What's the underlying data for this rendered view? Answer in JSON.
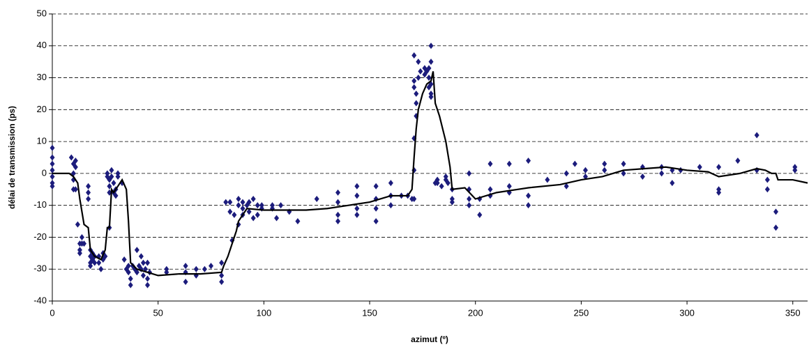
{
  "chart_data": {
    "type": "scatter",
    "xlabel": "azimut (º)",
    "ylabel": "délai de transmission (ps)",
    "xlim": [
      0,
      357
    ],
    "ylim": [
      -40,
      50
    ],
    "xticks": [
      0,
      50,
      100,
      150,
      200,
      250,
      300,
      350
    ],
    "yticks": [
      -40,
      -30,
      -20,
      -10,
      0,
      10,
      20,
      30,
      40,
      50
    ],
    "grid": true,
    "series": [
      {
        "type": "scatter",
        "color": "#1c1c7c",
        "x": [
          0,
          0,
          0,
          0,
          0,
          0,
          0,
          9,
          10,
          10,
          10,
          10,
          11,
          11,
          11,
          12,
          13,
          13,
          13,
          14,
          14,
          15,
          17,
          17,
          17,
          18,
          18,
          18,
          18,
          19,
          19,
          20,
          20,
          22,
          22,
          23,
          24,
          24,
          25,
          26,
          26,
          27,
          27,
          27,
          27,
          28,
          28,
          29,
          29,
          30,
          30,
          31,
          31,
          33,
          34,
          35,
          36,
          36,
          37,
          37,
          38,
          39,
          40,
          40,
          41,
          42,
          42,
          43,
          43,
          44,
          45,
          45,
          45,
          46,
          54,
          54,
          63,
          63,
          63,
          68,
          68,
          72,
          75,
          80,
          80,
          80,
          82,
          84,
          84,
          85,
          86,
          88,
          88,
          88,
          90,
          90,
          90,
          92,
          93,
          93,
          95,
          95,
          97,
          97,
          99,
          99,
          104,
          104,
          106,
          108,
          112,
          116,
          125,
          135,
          135,
          135,
          135,
          144,
          144,
          144,
          144,
          153,
          153,
          153,
          153,
          160,
          160,
          160,
          165,
          168,
          170,
          171,
          171,
          171,
          171,
          171,
          171,
          172,
          172,
          172,
          173,
          173,
          174,
          176,
          176,
          177,
          178,
          178,
          178,
          179,
          179,
          179,
          179,
          179,
          181,
          182,
          182,
          184,
          186,
          186,
          187,
          189,
          189,
          189,
          197,
          197,
          197,
          197,
          202,
          202,
          207,
          207,
          207,
          216,
          216,
          216,
          225,
          225,
          225,
          234,
          243,
          243,
          247,
          252,
          252,
          261,
          261,
          270,
          270,
          279,
          279,
          288,
          288,
          293,
          293,
          297,
          306,
          315,
          315,
          315,
          324,
          333,
          333,
          338,
          338,
          342,
          342,
          351,
          351
        ],
        "y": [
          8,
          5,
          3,
          1,
          -1,
          -3,
          -4,
          5,
          3,
          0,
          -2,
          -5,
          4,
          2,
          -5,
          -16,
          -22,
          -24,
          -25,
          -20,
          -22,
          -22,
          -4,
          -6,
          -8,
          -24,
          -26,
          -28,
          -29,
          -25,
          -27,
          -26,
          -28,
          -26,
          -28,
          -30,
          -25,
          -27,
          -26,
          0,
          -1,
          -2,
          -4,
          -6,
          -17,
          -1,
          1,
          -3,
          -6,
          -5,
          -7,
          0,
          -1,
          -3,
          -27,
          -30,
          -29,
          -31,
          -33,
          -35,
          -29,
          -30,
          -24,
          -31,
          -29,
          -26,
          -30,
          -28,
          -32,
          -30,
          -33,
          -35,
          -28,
          -31,
          -30,
          -31,
          -29,
          -31,
          -34,
          -30,
          -32,
          -30,
          -29,
          -28,
          -32,
          -34,
          -9,
          -9,
          -12,
          -21,
          -13,
          -8,
          -10,
          -16,
          -9,
          -11,
          -13,
          -10,
          -9,
          -12,
          -8,
          -14,
          -10,
          -13,
          -10,
          -11,
          -10,
          -11,
          -14,
          -10,
          -12,
          -15,
          -8,
          -6,
          -9,
          -13,
          -15,
          -4,
          -7,
          -11,
          -13,
          -4,
          -8,
          -11,
          -15,
          -3,
          -7,
          -10,
          -7,
          -7,
          -8,
          37,
          29,
          27,
          1,
          11,
          -8,
          25,
          22,
          18,
          35,
          30,
          32,
          31,
          33,
          32,
          33,
          27,
          30,
          40,
          35,
          25,
          28,
          24,
          -3,
          -2,
          -3,
          -4,
          -1,
          -2,
          -3,
          -5,
          -8,
          -9,
          0,
          -5,
          -8,
          -10,
          -8,
          -13,
          3,
          -5,
          -7,
          3,
          -4,
          -6,
          4,
          -7,
          -10,
          -2,
          0,
          -4,
          3,
          1,
          -1,
          3,
          1,
          3,
          0,
          2,
          -1,
          2,
          0,
          1,
          -3,
          1,
          2,
          2,
          -5,
          -6,
          4,
          12,
          1,
          -5,
          -2,
          -12,
          -17,
          2,
          1
        ]
      },
      {
        "type": "line",
        "color": "#000000",
        "x": [
          0,
          8,
          10,
          12,
          13,
          14,
          15,
          17,
          18,
          20,
          23,
          25,
          26,
          27,
          28,
          29,
          30,
          31,
          33,
          35,
          36,
          37,
          40,
          45,
          50,
          60,
          70,
          80,
          81,
          83,
          85,
          87,
          88,
          90,
          92,
          100,
          120,
          130,
          140,
          150,
          160,
          168,
          170,
          171,
          172,
          173,
          175,
          177,
          179,
          180,
          181,
          183,
          186,
          188,
          189,
          195,
          200,
          210,
          220,
          225,
          240,
          250,
          260,
          270,
          280,
          290,
          300,
          310,
          315,
          325,
          333,
          337,
          340,
          342,
          343,
          350,
          357
        ],
        "y": [
          0,
          0,
          -1,
          -3,
          -8,
          -12,
          -16,
          -17,
          -24,
          -26,
          -27,
          -24,
          -17,
          -17,
          -5,
          -6,
          -5,
          -4,
          -2,
          -5,
          -15,
          -28,
          -30,
          -31,
          -32,
          -31.5,
          -31.5,
          -31,
          -29,
          -26,
          -22,
          -18,
          -15,
          -13,
          -11,
          -11.5,
          -11.5,
          -11,
          -10,
          -9,
          -7,
          -7,
          -5,
          5,
          14,
          20,
          25,
          28,
          29,
          32,
          22,
          18,
          10,
          2,
          -5,
          -4.5,
          -8,
          -6,
          -5,
          -4.5,
          -3.5,
          -2,
          -1,
          1,
          1.5,
          2,
          1,
          0.5,
          -1,
          0,
          1.5,
          1,
          0,
          0,
          -2,
          -2,
          -3
        ]
      }
    ]
  }
}
